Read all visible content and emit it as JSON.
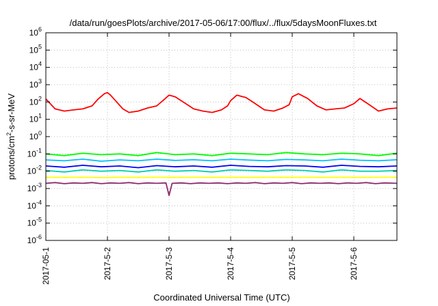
{
  "chart_data": {
    "type": "line",
    "title": "/data/run/goesPlots/archive/2017-05-06/17:00/flux/../flux/5daysMoonFluxes.txt",
    "xlabel": "Coordinated Universal Time (UTC)",
    "ylabel_main": "protons/cm",
    "ylabel_sup": "2",
    "ylabel_tail": "-s-sr-MeV",
    "yscale": "log",
    "ylim": [
      1e-06,
      1000000.0
    ],
    "xlim": [
      0,
      5.7
    ],
    "grid": true,
    "x_ticks": [
      {
        "x": 0,
        "label": "2017-05-1"
      },
      {
        "x": 1,
        "label": "2017-5-2"
      },
      {
        "x": 2,
        "label": "2017-5-3"
      },
      {
        "x": 3,
        "label": "2017-5-4"
      },
      {
        "x": 4,
        "label": "2017-5-5"
      },
      {
        "x": 5,
        "label": "2017-5-6"
      }
    ],
    "y_ticks": [
      {
        "exp": -6,
        "label": "-6"
      },
      {
        "exp": -5,
        "label": "-5"
      },
      {
        "exp": -4,
        "label": "-4"
      },
      {
        "exp": -3,
        "label": "-3"
      },
      {
        "exp": -2,
        "label": "-2"
      },
      {
        "exp": -1,
        "label": "-1"
      },
      {
        "exp": 0,
        "label": "0"
      },
      {
        "exp": 1,
        "label": "1"
      },
      {
        "exp": 2,
        "label": "2"
      },
      {
        "exp": 3,
        "label": "3"
      },
      {
        "exp": 4,
        "label": "4"
      },
      {
        "exp": 5,
        "label": "5"
      },
      {
        "exp": 6,
        "label": "6"
      }
    ],
    "y_tick_base": "10",
    "series": [
      {
        "color": "#ff0000",
        "x": [
          0.0,
          0.15,
          0.3,
          0.45,
          0.6,
          0.75,
          0.85,
          0.95,
          1.0,
          1.05,
          1.15,
          1.25,
          1.35,
          1.5,
          1.65,
          1.8,
          1.9,
          2.0,
          2.1,
          2.25,
          2.4,
          2.55,
          2.7,
          2.85,
          2.95,
          3.0,
          3.1,
          3.25,
          3.4,
          3.55,
          3.7,
          3.85,
          3.95,
          4.0,
          4.1,
          4.25,
          4.4,
          4.55,
          4.7,
          4.85,
          5.0,
          5.1,
          5.25,
          5.4,
          5.55,
          5.7
        ],
        "y": [
          150,
          40,
          30,
          35,
          40,
          60,
          150,
          300,
          350,
          250,
          100,
          40,
          25,
          30,
          45,
          60,
          120,
          250,
          200,
          90,
          40,
          30,
          25,
          35,
          60,
          120,
          250,
          180,
          80,
          35,
          30,
          45,
          70,
          200,
          300,
          160,
          60,
          35,
          40,
          45,
          80,
          160,
          70,
          30,
          40,
          45
        ]
      },
      {
        "color": "#00ff00",
        "x": [
          0.0,
          0.3,
          0.6,
          0.9,
          1.2,
          1.5,
          1.8,
          2.1,
          2.4,
          2.7,
          3.0,
          3.3,
          3.6,
          3.9,
          4.2,
          4.5,
          4.8,
          5.1,
          5.4,
          5.7
        ],
        "y": [
          0.1,
          0.08,
          0.11,
          0.09,
          0.1,
          0.08,
          0.12,
          0.09,
          0.1,
          0.08,
          0.11,
          0.1,
          0.09,
          0.12,
          0.1,
          0.09,
          0.11,
          0.1,
          0.08,
          0.11
        ]
      },
      {
        "color": "#00bfff",
        "x": [
          0.0,
          0.3,
          0.6,
          0.9,
          1.2,
          1.5,
          1.8,
          2.1,
          2.4,
          2.7,
          3.0,
          3.3,
          3.6,
          3.9,
          4.2,
          4.5,
          4.8,
          5.1,
          5.4,
          5.7
        ],
        "y": [
          0.045,
          0.04,
          0.05,
          0.038,
          0.045,
          0.04,
          0.05,
          0.042,
          0.046,
          0.04,
          0.05,
          0.044,
          0.04,
          0.048,
          0.045,
          0.04,
          0.05,
          0.043,
          0.04,
          0.046
        ]
      },
      {
        "color": "#0000ff",
        "x": [
          0.0,
          0.3,
          0.6,
          0.9,
          1.2,
          1.5,
          1.8,
          2.1,
          2.4,
          2.7,
          3.0,
          3.3,
          3.6,
          3.9,
          4.2,
          4.5,
          4.8,
          5.1,
          5.4,
          5.7
        ],
        "y": [
          0.02,
          0.017,
          0.022,
          0.018,
          0.02,
          0.016,
          0.021,
          0.018,
          0.02,
          0.017,
          0.022,
          0.019,
          0.018,
          0.021,
          0.02,
          0.017,
          0.022,
          0.019,
          0.018,
          0.02
        ]
      },
      {
        "color": "#00d0b0",
        "x": [
          0.0,
          0.3,
          0.6,
          0.9,
          1.2,
          1.5,
          1.8,
          2.1,
          2.4,
          2.7,
          3.0,
          3.3,
          3.6,
          3.9,
          4.2,
          4.5,
          4.8,
          5.1,
          5.4,
          5.7
        ],
        "y": [
          0.011,
          0.009,
          0.012,
          0.01,
          0.011,
          0.009,
          0.012,
          0.01,
          0.011,
          0.009,
          0.012,
          0.011,
          0.01,
          0.012,
          0.011,
          0.009,
          0.012,
          0.01,
          0.01,
          0.011
        ]
      },
      {
        "color": "#ffff00",
        "x": [
          0.0,
          0.3,
          0.6,
          0.9,
          1.2,
          1.5,
          1.8,
          2.1,
          2.4,
          2.7,
          3.0,
          3.3,
          3.6,
          3.9,
          4.2,
          4.5,
          4.8,
          5.1,
          5.4,
          5.7
        ],
        "y": [
          0.0045,
          0.0044,
          0.0045,
          0.0043,
          0.0045,
          0.0044,
          0.0045,
          0.0044,
          0.0045,
          0.0044,
          0.0045,
          0.0044,
          0.0045,
          0.0044,
          0.0045,
          0.0044,
          0.0045,
          0.0044,
          0.0045,
          0.0045
        ]
      },
      {
        "color": "#8b2a6e",
        "x": [
          0.0,
          0.15,
          0.3,
          0.45,
          0.6,
          0.75,
          0.9,
          1.05,
          1.2,
          1.35,
          1.5,
          1.65,
          1.8,
          1.95,
          2.0,
          2.05,
          2.2,
          2.35,
          2.5,
          2.65,
          2.8,
          2.95,
          3.1,
          3.25,
          3.4,
          3.55,
          3.7,
          3.85,
          4.0,
          4.15,
          4.3,
          4.45,
          4.6,
          4.75,
          4.9,
          5.05,
          5.2,
          5.35,
          5.5,
          5.7
        ],
        "y": [
          0.002,
          0.0022,
          0.0019,
          0.0021,
          0.002,
          0.0022,
          0.0019,
          0.0021,
          0.002,
          0.0022,
          0.0019,
          0.0021,
          0.002,
          0.0021,
          0.0004,
          0.002,
          0.0021,
          0.0019,
          0.0021,
          0.002,
          0.0021,
          0.0019,
          0.0021,
          0.002,
          0.0022,
          0.0019,
          0.0021,
          0.002,
          0.0022,
          0.0019,
          0.0021,
          0.002,
          0.0021,
          0.0019,
          0.0021,
          0.002,
          0.0022,
          0.0019,
          0.0021,
          0.002
        ]
      }
    ]
  }
}
